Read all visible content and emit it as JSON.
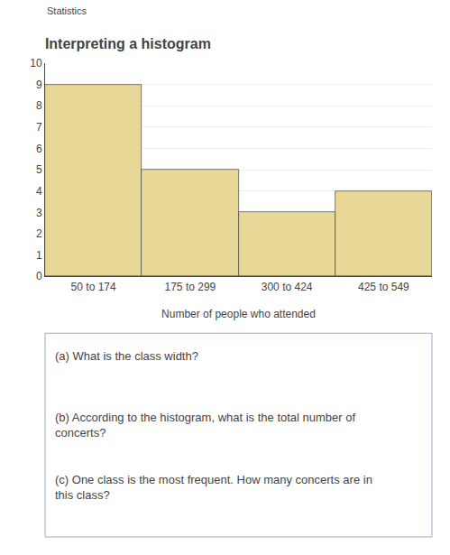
{
  "chart_data": {
    "type": "bar",
    "title": "Interpreting a histogram",
    "subtitle": "Statistics",
    "categories": [
      "50 to 174",
      "175 to 299",
      "300 to 424",
      "425 to 549"
    ],
    "values": [
      9,
      5,
      3,
      4
    ],
    "color": "#e8d898",
    "xlabel": "Number of people who attended",
    "ylim": [
      0,
      10
    ],
    "yticks": [
      0,
      1,
      2,
      3,
      4,
      5,
      6,
      7,
      8,
      9,
      10
    ],
    "grid": true,
    "annotations": [
      "(a) What is the class width?",
      "(b) According to the histogram, what is the total number of\nconcerts?",
      "(c) One class is the most frequent. How many concerts are in\nthis class?"
    ]
  }
}
